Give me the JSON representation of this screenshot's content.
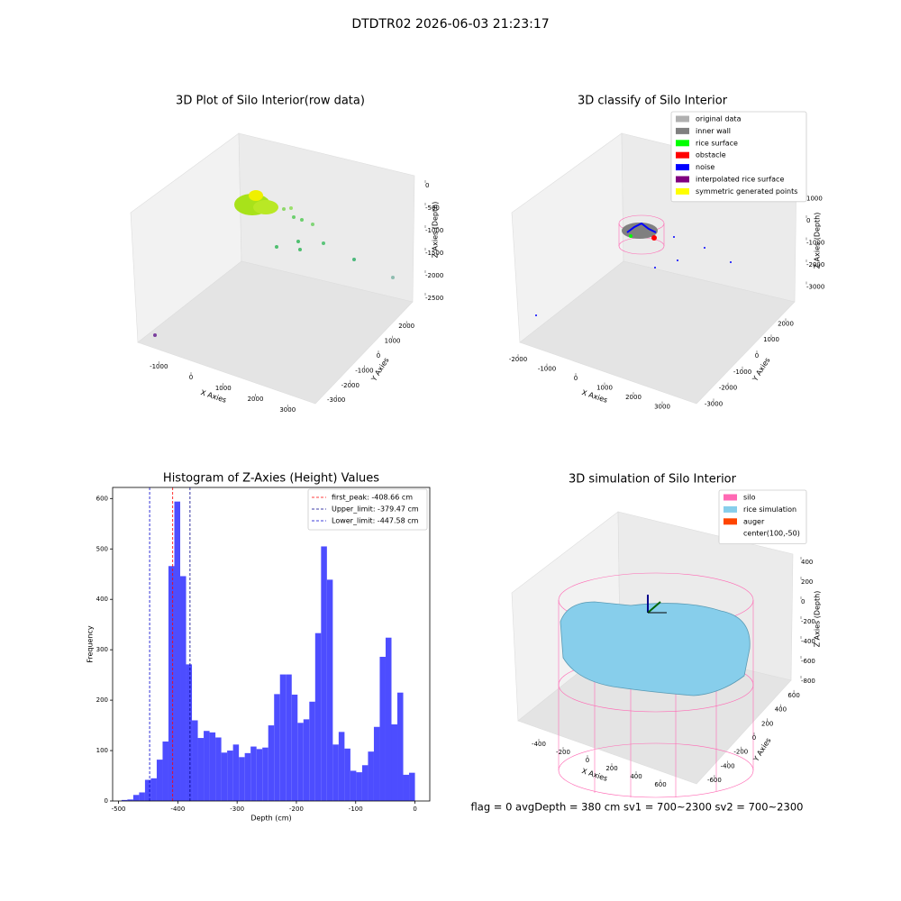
{
  "title": "DTDTR02 2026-06-03 21:23:17",
  "footer": "flag = 0     avgDepth = 380 cm  sv1 = 700~2300  sv2 = 700~2300",
  "chart_data": [
    {
      "type": "scatter3d",
      "title": "3D Plot of Silo Interior(row data)",
      "xlabel": "X Axies",
      "ylabel": "Y Axies",
      "zlabel": "Z Axies (Depth)",
      "xticks": [
        -1000,
        0,
        1000,
        2000,
        3000
      ],
      "yticks": [
        -3000,
        -2000,
        -1000,
        0,
        1000,
        2000
      ],
      "zticks": [
        -2500,
        -2000,
        -1500,
        -1000,
        -500,
        0
      ]
    },
    {
      "type": "scatter3d",
      "title": "3D classify of Silo Interior",
      "xlabel": "X Axies",
      "ylabel": "Y Axies",
      "zlabel": "Z Axies (Depth)",
      "xticks": [
        -2000,
        -1000,
        0,
        1000,
        2000,
        3000
      ],
      "yticks": [
        -3000,
        -2000,
        -1000,
        0,
        1000,
        2000
      ],
      "zticks": [
        -3000,
        -2000,
        -1000,
        0,
        1000
      ],
      "legend": [
        {
          "name": "original data",
          "color": "#b0b0b0"
        },
        {
          "name": "inner wall",
          "color": "#808080"
        },
        {
          "name": "rice surface",
          "color": "#00ff00"
        },
        {
          "name": "obstacle",
          "color": "#ff0000"
        },
        {
          "name": "noise",
          "color": "#0000ff"
        },
        {
          "name": "interpolated rice surface",
          "color": "#800080"
        },
        {
          "name": "symmetric generated points",
          "color": "#ffff00"
        }
      ]
    },
    {
      "type": "histogram",
      "title": "Histogram of Z-Axies (Height) Values",
      "xlabel": "Depth (cm)",
      "ylabel": "Frequency",
      "color": "#4d4dff",
      "bins": [
        -495,
        -485.1,
        -475.2,
        -465.3,
        -455.4,
        -445.5,
        -435.6,
        -425.7,
        -415.8,
        -405.9,
        -396,
        -386.1,
        -376.2,
        -366.3,
        -356.4,
        -346.5,
        -336.6,
        -326.7,
        -316.8,
        -306.9,
        -297,
        -287.1,
        -277.2,
        -267.3,
        -257.4,
        -247.5,
        -237.6,
        -227.7,
        -217.8,
        -207.9,
        -198,
        -188.1,
        -178.2,
        -168.3,
        -158.4,
        -148.5,
        -138.6,
        -128.7,
        -118.8,
        -108.9,
        -99,
        -89.1,
        -79.2,
        -69.3,
        -59.4,
        -49.5,
        -39.6,
        -29.7,
        -19.8,
        -9.9,
        0
      ],
      "values": [
        2,
        3,
        12,
        17,
        42,
        45,
        82,
        118,
        466,
        594,
        446,
        271,
        160,
        125,
        139,
        136,
        126,
        96,
        100,
        112,
        87,
        95,
        108,
        103,
        106,
        150,
        212,
        251,
        251,
        211,
        155,
        162,
        197,
        333,
        505,
        439,
        112,
        137,
        104,
        60,
        57,
        71,
        98,
        147,
        286,
        324,
        152,
        215,
        52,
        56
      ],
      "xlim": [
        -510,
        25
      ],
      "ylim": [
        0,
        622
      ],
      "xticks": [
        -500,
        -400,
        -300,
        -200,
        -100,
        0
      ],
      "yticks": [
        0,
        100,
        200,
        300,
        400,
        500,
        600
      ],
      "vlines": [
        {
          "name": "first_peak: -408.66 cm",
          "value": -408.66,
          "color": "#ff0000"
        },
        {
          "name": "Upper_limit: -379.47 cm",
          "value": -379.47,
          "color": "#00008b"
        },
        {
          "name": "Lower_limit: -447.58 cm",
          "value": -447.58,
          "color": "#0000cd"
        }
      ],
      "legend_loc": "upper right"
    },
    {
      "type": "surface3d",
      "title": "3D simulation of Silo Interior",
      "xlabel": "X Axies",
      "ylabel": "Y Axies",
      "zlabel": "Z Axies (Depth)",
      "xticks": [
        -400,
        -200,
        0,
        200,
        400,
        600
      ],
      "yticks": [
        -600,
        -400,
        -200,
        0,
        200,
        400,
        600
      ],
      "zticks": [
        -800,
        -600,
        -400,
        -200,
        0,
        200,
        400
      ],
      "legend": [
        {
          "name": "silo",
          "color": "#ff69b4"
        },
        {
          "name": "rice simulation",
          "color": "#87ceeb"
        },
        {
          "name": "auger",
          "color": "#ff4500"
        },
        {
          "name": "center(100,-50)"
        }
      ]
    }
  ]
}
